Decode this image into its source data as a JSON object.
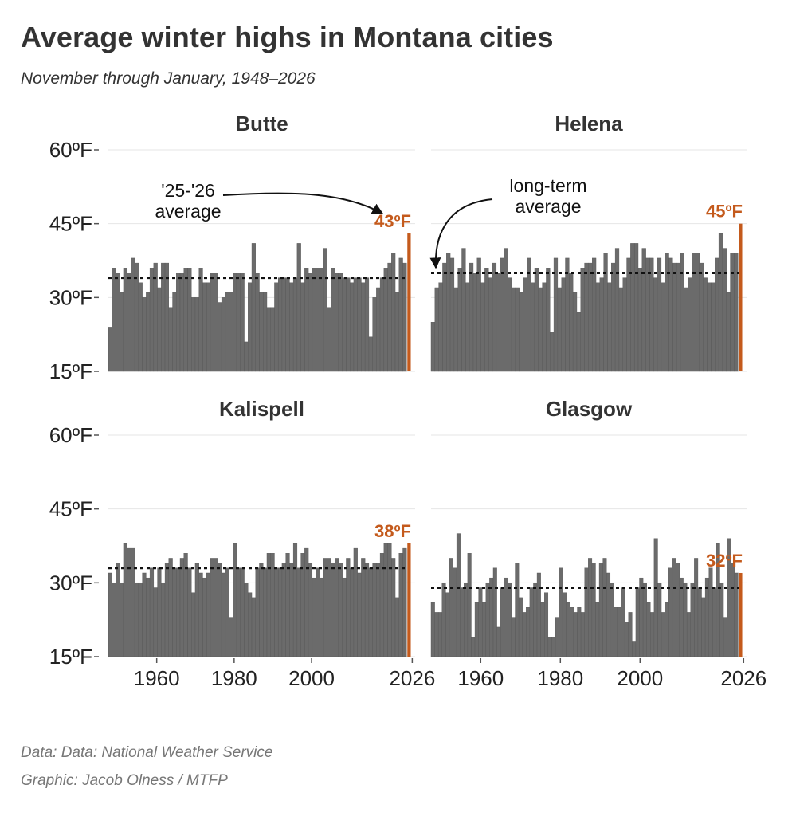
{
  "title": "Average winter highs in Montana cities",
  "subtitle": "November through January, 1948–2026",
  "source": "Data: Data: National Weather Service",
  "credit": "Graphic: Jacob Olness / MTFP",
  "colors": {
    "bar": "#6b6b6b",
    "highlight": "#c45a1c",
    "text": "#333333",
    "grid": "#e6e6e6",
    "caption": "#777777"
  },
  "chart_data": {
    "type": "bar",
    "x_range": [
      1948,
      2026
    ],
    "ylim": [
      15,
      60
    ],
    "y_ticks": [
      15,
      30,
      45,
      60
    ],
    "y_tick_labels": [
      "15ºF",
      "30ºF",
      "45ºF",
      "60ºF"
    ],
    "x_ticks": [
      1960,
      1980,
      2000,
      2026
    ],
    "x_tick_labels": [
      "1960",
      "1980",
      "2000",
      "2026"
    ],
    "grid": true,
    "series": [
      {
        "name": "Butte",
        "average": 34,
        "latest_label": "43ºF",
        "values": [
          24,
          36,
          35,
          31,
          36,
          35,
          38,
          37,
          33,
          30,
          31,
          36,
          37,
          32,
          37,
          37,
          28,
          31,
          35,
          35,
          36,
          36,
          30,
          30,
          36,
          33,
          33,
          35,
          35,
          29,
          30,
          31,
          31,
          35,
          35,
          35,
          21,
          33,
          41,
          35,
          31,
          31,
          28,
          28,
          33,
          34,
          34,
          34,
          33,
          34,
          41,
          33,
          36,
          35,
          36,
          36,
          36,
          40,
          28,
          36,
          35,
          35,
          34,
          34,
          33,
          34,
          34,
          33,
          34,
          22,
          30,
          32,
          34,
          36,
          37,
          39,
          31,
          38,
          37
        ],
        "latest": 43
      },
      {
        "name": "Helena",
        "average": 35,
        "latest_label": "45ºF",
        "values": [
          25,
          32,
          33,
          37,
          39,
          38,
          32,
          36,
          40,
          33,
          37,
          35,
          38,
          33,
          36,
          34,
          37,
          35,
          38,
          40,
          34,
          32,
          32,
          31,
          34,
          38,
          33,
          36,
          32,
          33,
          36,
          23,
          38,
          32,
          34,
          38,
          35,
          31,
          27,
          36,
          37,
          37,
          38,
          33,
          34,
          39,
          33,
          37,
          40,
          32,
          34,
          38,
          41,
          41,
          36,
          40,
          38,
          38,
          34,
          38,
          33,
          39,
          38,
          37,
          37,
          39,
          32,
          34,
          39,
          39,
          37,
          34,
          33,
          33,
          38,
          43,
          40,
          31,
          39,
          39
        ],
        "latest": 45
      },
      {
        "name": "Kalispell",
        "average": 33,
        "latest_label": "38ºF",
        "values": [
          32,
          30,
          34,
          30,
          38,
          37,
          37,
          30,
          30,
          32,
          31,
          33,
          29,
          33,
          30,
          34,
          35,
          33,
          33,
          35,
          36,
          33,
          28,
          34,
          32,
          31,
          32,
          35,
          35,
          34,
          32,
          33,
          23,
          38,
          33,
          33,
          30,
          28,
          27,
          33,
          34,
          33,
          36,
          36,
          33,
          33,
          34,
          36,
          34,
          38,
          33,
          36,
          37,
          34,
          31,
          33,
          31,
          35,
          35,
          34,
          35,
          34,
          31,
          35,
          33,
          37,
          32,
          35,
          34,
          33,
          34,
          34,
          36,
          38,
          38,
          35,
          27,
          36,
          37
        ],
        "latest": 38
      },
      {
        "name": "Glasgow",
        "average": 29,
        "latest_label": "32ºF",
        "values": [
          26,
          24,
          24,
          30,
          28,
          35,
          33,
          40,
          29,
          30,
          36,
          19,
          26,
          29,
          26,
          30,
          31,
          33,
          21,
          29,
          31,
          30,
          23,
          34,
          27,
          24,
          25,
          29,
          30,
          32,
          26,
          28,
          19,
          19,
          23,
          33,
          28,
          26,
          25,
          24,
          25,
          24,
          33,
          35,
          34,
          26,
          34,
          35,
          32,
          30,
          25,
          25,
          29,
          22,
          24,
          18,
          29,
          31,
          30,
          26,
          24,
          39,
          30,
          24,
          26,
          33,
          35,
          34,
          31,
          30,
          24,
          30,
          35,
          29,
          27,
          31,
          33,
          29,
          38,
          30,
          23,
          39,
          34,
          32
        ],
        "latest": 32
      }
    ],
    "annotations": [
      {
        "text_lines": [
          "'25-'26",
          "average"
        ],
        "panel": "Butte"
      },
      {
        "text_lines": [
          "long-term",
          "average"
        ],
        "panel": "Helena"
      }
    ]
  }
}
